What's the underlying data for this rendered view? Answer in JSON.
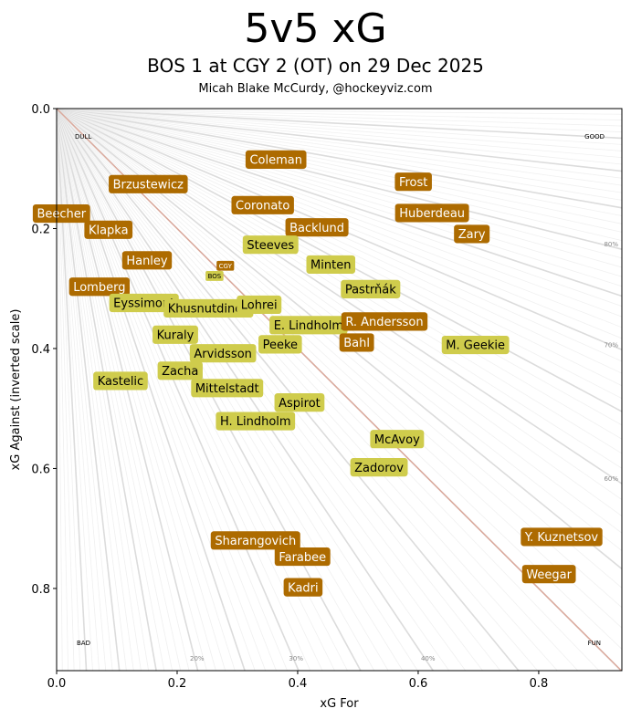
{
  "chart_data": {
    "type": "scatter",
    "title": "5v5 xG",
    "subtitle": "BOS 1 at CGY 2 (OT) on 29 Dec 2025",
    "credit": "Micah Blake McCurdy, @hockeyviz.com",
    "xlabel": "xG For",
    "ylabel": "xG Against (inverted scale)",
    "xlim": [
      0,
      0.938
    ],
    "ylim": [
      0.937,
      0
    ],
    "xticks": [
      "0.0",
      "0.2",
      "0.4",
      "0.6",
      "0.8"
    ],
    "yticks": [
      "0.0",
      "0.2",
      "0.4",
      "0.6",
      "0.8"
    ],
    "corners": {
      "top_left": "DULL",
      "top_right": "GOOD",
      "bottom_left": "BAD",
      "bottom_right": "FUN"
    },
    "pct_labels_right": [
      {
        "label": "80%",
        "pct": 0.8
      },
      {
        "label": "70%",
        "pct": 0.7
      },
      {
        "label": "60%",
        "pct": 0.6
      }
    ],
    "pct_labels_bottom": [
      {
        "label": "20%",
        "pct": 0.2
      },
      {
        "label": "30%",
        "pct": 0.3
      },
      {
        "label": "40%",
        "pct": 0.4
      }
    ],
    "colors": {
      "CGY": "#ad6b00",
      "BOS": "#cfcc4c",
      "diagonal": "#dba99c",
      "fan": "#dddddd"
    },
    "teams": [
      {
        "name": "CGY",
        "team": "CGY",
        "x": 0.28,
        "y": 0.262
      },
      {
        "name": "BOS",
        "team": "BOS",
        "x": 0.262,
        "y": 0.279
      }
    ],
    "players": [
      {
        "name": "Coleman",
        "team": "CGY",
        "x": 0.364,
        "y": 0.085
      },
      {
        "name": "Frost",
        "team": "CGY",
        "x": 0.592,
        "y": 0.122
      },
      {
        "name": "Brzustewicz",
        "team": "CGY",
        "x": 0.152,
        "y": 0.126
      },
      {
        "name": "Coronato",
        "team": "CGY",
        "x": 0.342,
        "y": 0.161
      },
      {
        "name": "Beecher",
        "team": "CGY",
        "x": 0.008,
        "y": 0.175
      },
      {
        "name": "Huberdeau",
        "team": "CGY",
        "x": 0.623,
        "y": 0.174
      },
      {
        "name": "Klapka",
        "team": "CGY",
        "x": 0.086,
        "y": 0.202
      },
      {
        "name": "Backlund",
        "team": "CGY",
        "x": 0.432,
        "y": 0.198
      },
      {
        "name": "Zary",
        "team": "CGY",
        "x": 0.689,
        "y": 0.209
      },
      {
        "name": "Steeves",
        "team": "BOS",
        "x": 0.355,
        "y": 0.227
      },
      {
        "name": "Hanley",
        "team": "CGY",
        "x": 0.15,
        "y": 0.253
      },
      {
        "name": "Minten",
        "team": "BOS",
        "x": 0.455,
        "y": 0.26
      },
      {
        "name": "Lomberg",
        "team": "CGY",
        "x": 0.071,
        "y": 0.297
      },
      {
        "name": "Pastrňák",
        "team": "BOS",
        "x": 0.521,
        "y": 0.301
      },
      {
        "name": "Eyssimont",
        "team": "BOS",
        "x": 0.145,
        "y": 0.324
      },
      {
        "name": "Khusnutdinov",
        "team": "BOS",
        "x": 0.252,
        "y": 0.333
      },
      {
        "name": "Lohrei",
        "team": "BOS",
        "x": 0.336,
        "y": 0.327
      },
      {
        "name": "E. Lindholm",
        "team": "BOS",
        "x": 0.418,
        "y": 0.361
      },
      {
        "name": "R. Andersson",
        "team": "CGY",
        "x": 0.544,
        "y": 0.355
      },
      {
        "name": "Kuraly",
        "team": "BOS",
        "x": 0.197,
        "y": 0.377
      },
      {
        "name": "Bahl",
        "team": "CGY",
        "x": 0.498,
        "y": 0.39
      },
      {
        "name": "Peeke",
        "team": "BOS",
        "x": 0.371,
        "y": 0.393
      },
      {
        "name": "M. Geekie",
        "team": "BOS",
        "x": 0.695,
        "y": 0.394
      },
      {
        "name": "Arvidsson",
        "team": "BOS",
        "x": 0.276,
        "y": 0.408
      },
      {
        "name": "Zacha",
        "team": "BOS",
        "x": 0.205,
        "y": 0.437
      },
      {
        "name": "Kastelic",
        "team": "BOS",
        "x": 0.106,
        "y": 0.454
      },
      {
        "name": "Mittelstadt",
        "team": "BOS",
        "x": 0.283,
        "y": 0.466
      },
      {
        "name": "Aspirot",
        "team": "BOS",
        "x": 0.403,
        "y": 0.49
      },
      {
        "name": "H. Lindholm",
        "team": "BOS",
        "x": 0.33,
        "y": 0.521
      },
      {
        "name": "McAvoy",
        "team": "BOS",
        "x": 0.565,
        "y": 0.551
      },
      {
        "name": "Zadorov",
        "team": "BOS",
        "x": 0.535,
        "y": 0.598
      },
      {
        "name": "Sharangovich",
        "team": "CGY",
        "x": 0.33,
        "y": 0.72
      },
      {
        "name": "Y. Kuznetsov",
        "team": "CGY",
        "x": 0.838,
        "y": 0.714
      },
      {
        "name": "Farabee",
        "team": "CGY",
        "x": 0.408,
        "y": 0.747
      },
      {
        "name": "Weegar",
        "team": "CGY",
        "x": 0.817,
        "y": 0.776
      },
      {
        "name": "Kadri",
        "team": "CGY",
        "x": 0.409,
        "y": 0.798
      }
    ]
  }
}
